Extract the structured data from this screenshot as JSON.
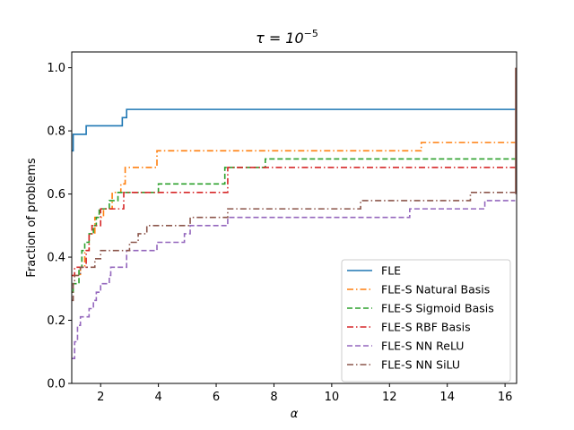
{
  "chart_data": {
    "type": "line",
    "title_prefix": "τ = 10",
    "title_exponent": "−5",
    "xlabel": "α",
    "ylabel": "Fraction of problems",
    "xlim": [
      1,
      16.4
    ],
    "ylim": [
      0,
      1.05
    ],
    "xticks": [
      2,
      4,
      6,
      8,
      10,
      12,
      14,
      16
    ],
    "yticks": [
      0.0,
      0.2,
      0.4,
      0.6,
      0.8,
      1.0
    ],
    "xtick_labels": [
      "2",
      "4",
      "6",
      "8",
      "10",
      "12",
      "14",
      "16"
    ],
    "ytick_labels": [
      "0.0",
      "0.2",
      "0.4",
      "0.6",
      "0.8",
      "1.0"
    ],
    "grid": false,
    "legend_position": "lower-right",
    "series": [
      {
        "name": "FLE",
        "color": "#1f77b4",
        "dash": "solid",
        "points": [
          [
            1.0,
            0.737
          ],
          [
            1.05,
            0.789
          ],
          [
            1.5,
            0.816
          ],
          [
            2.75,
            0.842
          ],
          [
            2.9,
            0.868
          ],
          [
            16.35,
            0.868
          ]
        ]
      },
      {
        "name": "FLE-S Natural Basis",
        "color": "#ff7f0e",
        "dash": "dashdot",
        "points": [
          [
            1.0,
            0.342
          ],
          [
            1.3,
            0.368
          ],
          [
            1.45,
            0.421
          ],
          [
            1.6,
            0.474
          ],
          [
            1.8,
            0.526
          ],
          [
            2.1,
            0.553
          ],
          [
            2.4,
            0.605
          ],
          [
            2.7,
            0.632
          ],
          [
            2.85,
            0.684
          ],
          [
            3.95,
            0.737
          ],
          [
            13.1,
            0.763
          ],
          [
            16.35,
            0.763
          ]
        ]
      },
      {
        "name": "FLE-S Sigmoid Basis",
        "color": "#2ca02c",
        "dash": "dashed",
        "points": [
          [
            1.0,
            0.289
          ],
          [
            1.05,
            0.316
          ],
          [
            1.25,
            0.368
          ],
          [
            1.35,
            0.421
          ],
          [
            1.45,
            0.447
          ],
          [
            1.6,
            0.474
          ],
          [
            1.75,
            0.5
          ],
          [
            1.85,
            0.526
          ],
          [
            1.95,
            0.553
          ],
          [
            2.3,
            0.579
          ],
          [
            2.6,
            0.605
          ],
          [
            4.0,
            0.632
          ],
          [
            6.3,
            0.684
          ],
          [
            7.7,
            0.711
          ],
          [
            16.35,
            0.711
          ]
        ]
      },
      {
        "name": "FLE-S RBF Basis",
        "color": "#d62728",
        "dash": "dashdot",
        "points": [
          [
            1.0,
            0.342
          ],
          [
            1.1,
            0.368
          ],
          [
            1.5,
            0.421
          ],
          [
            1.6,
            0.474
          ],
          [
            1.7,
            0.5
          ],
          [
            2.0,
            0.553
          ],
          [
            2.8,
            0.605
          ],
          [
            6.4,
            0.684
          ],
          [
            16.35,
            0.684
          ]
        ]
      },
      {
        "name": "FLE-S NN ReLU",
        "color": "#9467bd",
        "dash": "dashed",
        "points": [
          [
            1.0,
            0.079
          ],
          [
            1.1,
            0.132
          ],
          [
            1.2,
            0.184
          ],
          [
            1.3,
            0.211
          ],
          [
            1.6,
            0.237
          ],
          [
            1.75,
            0.263
          ],
          [
            1.85,
            0.289
          ],
          [
            2.0,
            0.316
          ],
          [
            2.3,
            0.342
          ],
          [
            2.35,
            0.368
          ],
          [
            2.9,
            0.421
          ],
          [
            3.95,
            0.447
          ],
          [
            4.9,
            0.474
          ],
          [
            5.1,
            0.5
          ],
          [
            6.4,
            0.526
          ],
          [
            12.7,
            0.553
          ],
          [
            15.3,
            0.579
          ],
          [
            16.35,
            0.579
          ]
        ]
      },
      {
        "name": "FLE-S NN SiLU",
        "color": "#8c564b",
        "dash": "dashdot",
        "points": [
          [
            1.0,
            0.263
          ],
          [
            1.05,
            0.316
          ],
          [
            1.1,
            0.342
          ],
          [
            1.3,
            0.368
          ],
          [
            1.8,
            0.395
          ],
          [
            2.0,
            0.421
          ],
          [
            3.0,
            0.447
          ],
          [
            3.3,
            0.474
          ],
          [
            3.6,
            0.5
          ],
          [
            5.1,
            0.526
          ],
          [
            6.4,
            0.553
          ],
          [
            11.0,
            0.579
          ],
          [
            14.8,
            0.605
          ],
          [
            16.35,
            0.605
          ]
        ]
      }
    ]
  }
}
